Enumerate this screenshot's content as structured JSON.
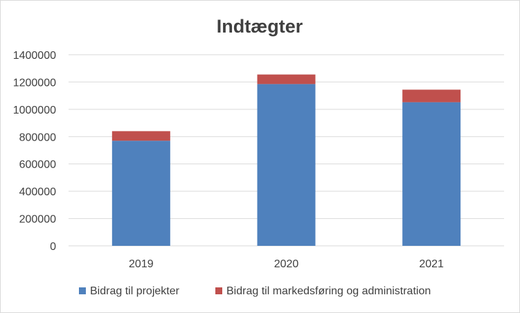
{
  "chart_data": {
    "type": "bar",
    "stacked": true,
    "title": "Indtægter",
    "xlabel": "",
    "ylabel": "",
    "categories": [
      "2019",
      "2020",
      "2021"
    ],
    "series": [
      {
        "name": "Bidrag til projekter",
        "values": [
          770000,
          1185000,
          1052000
        ],
        "color": "#4f81bd"
      },
      {
        "name": "Bidrag til markedsføring og administration",
        "values": [
          70000,
          70000,
          92000
        ],
        "color": "#c0504d"
      }
    ],
    "ylim": [
      0,
      1400000
    ],
    "yticks": [
      "0",
      "200000",
      "400000",
      "600000",
      "800000",
      "1000000",
      "1200000",
      "1400000"
    ],
    "grid": true,
    "legend_position": "bottom"
  }
}
